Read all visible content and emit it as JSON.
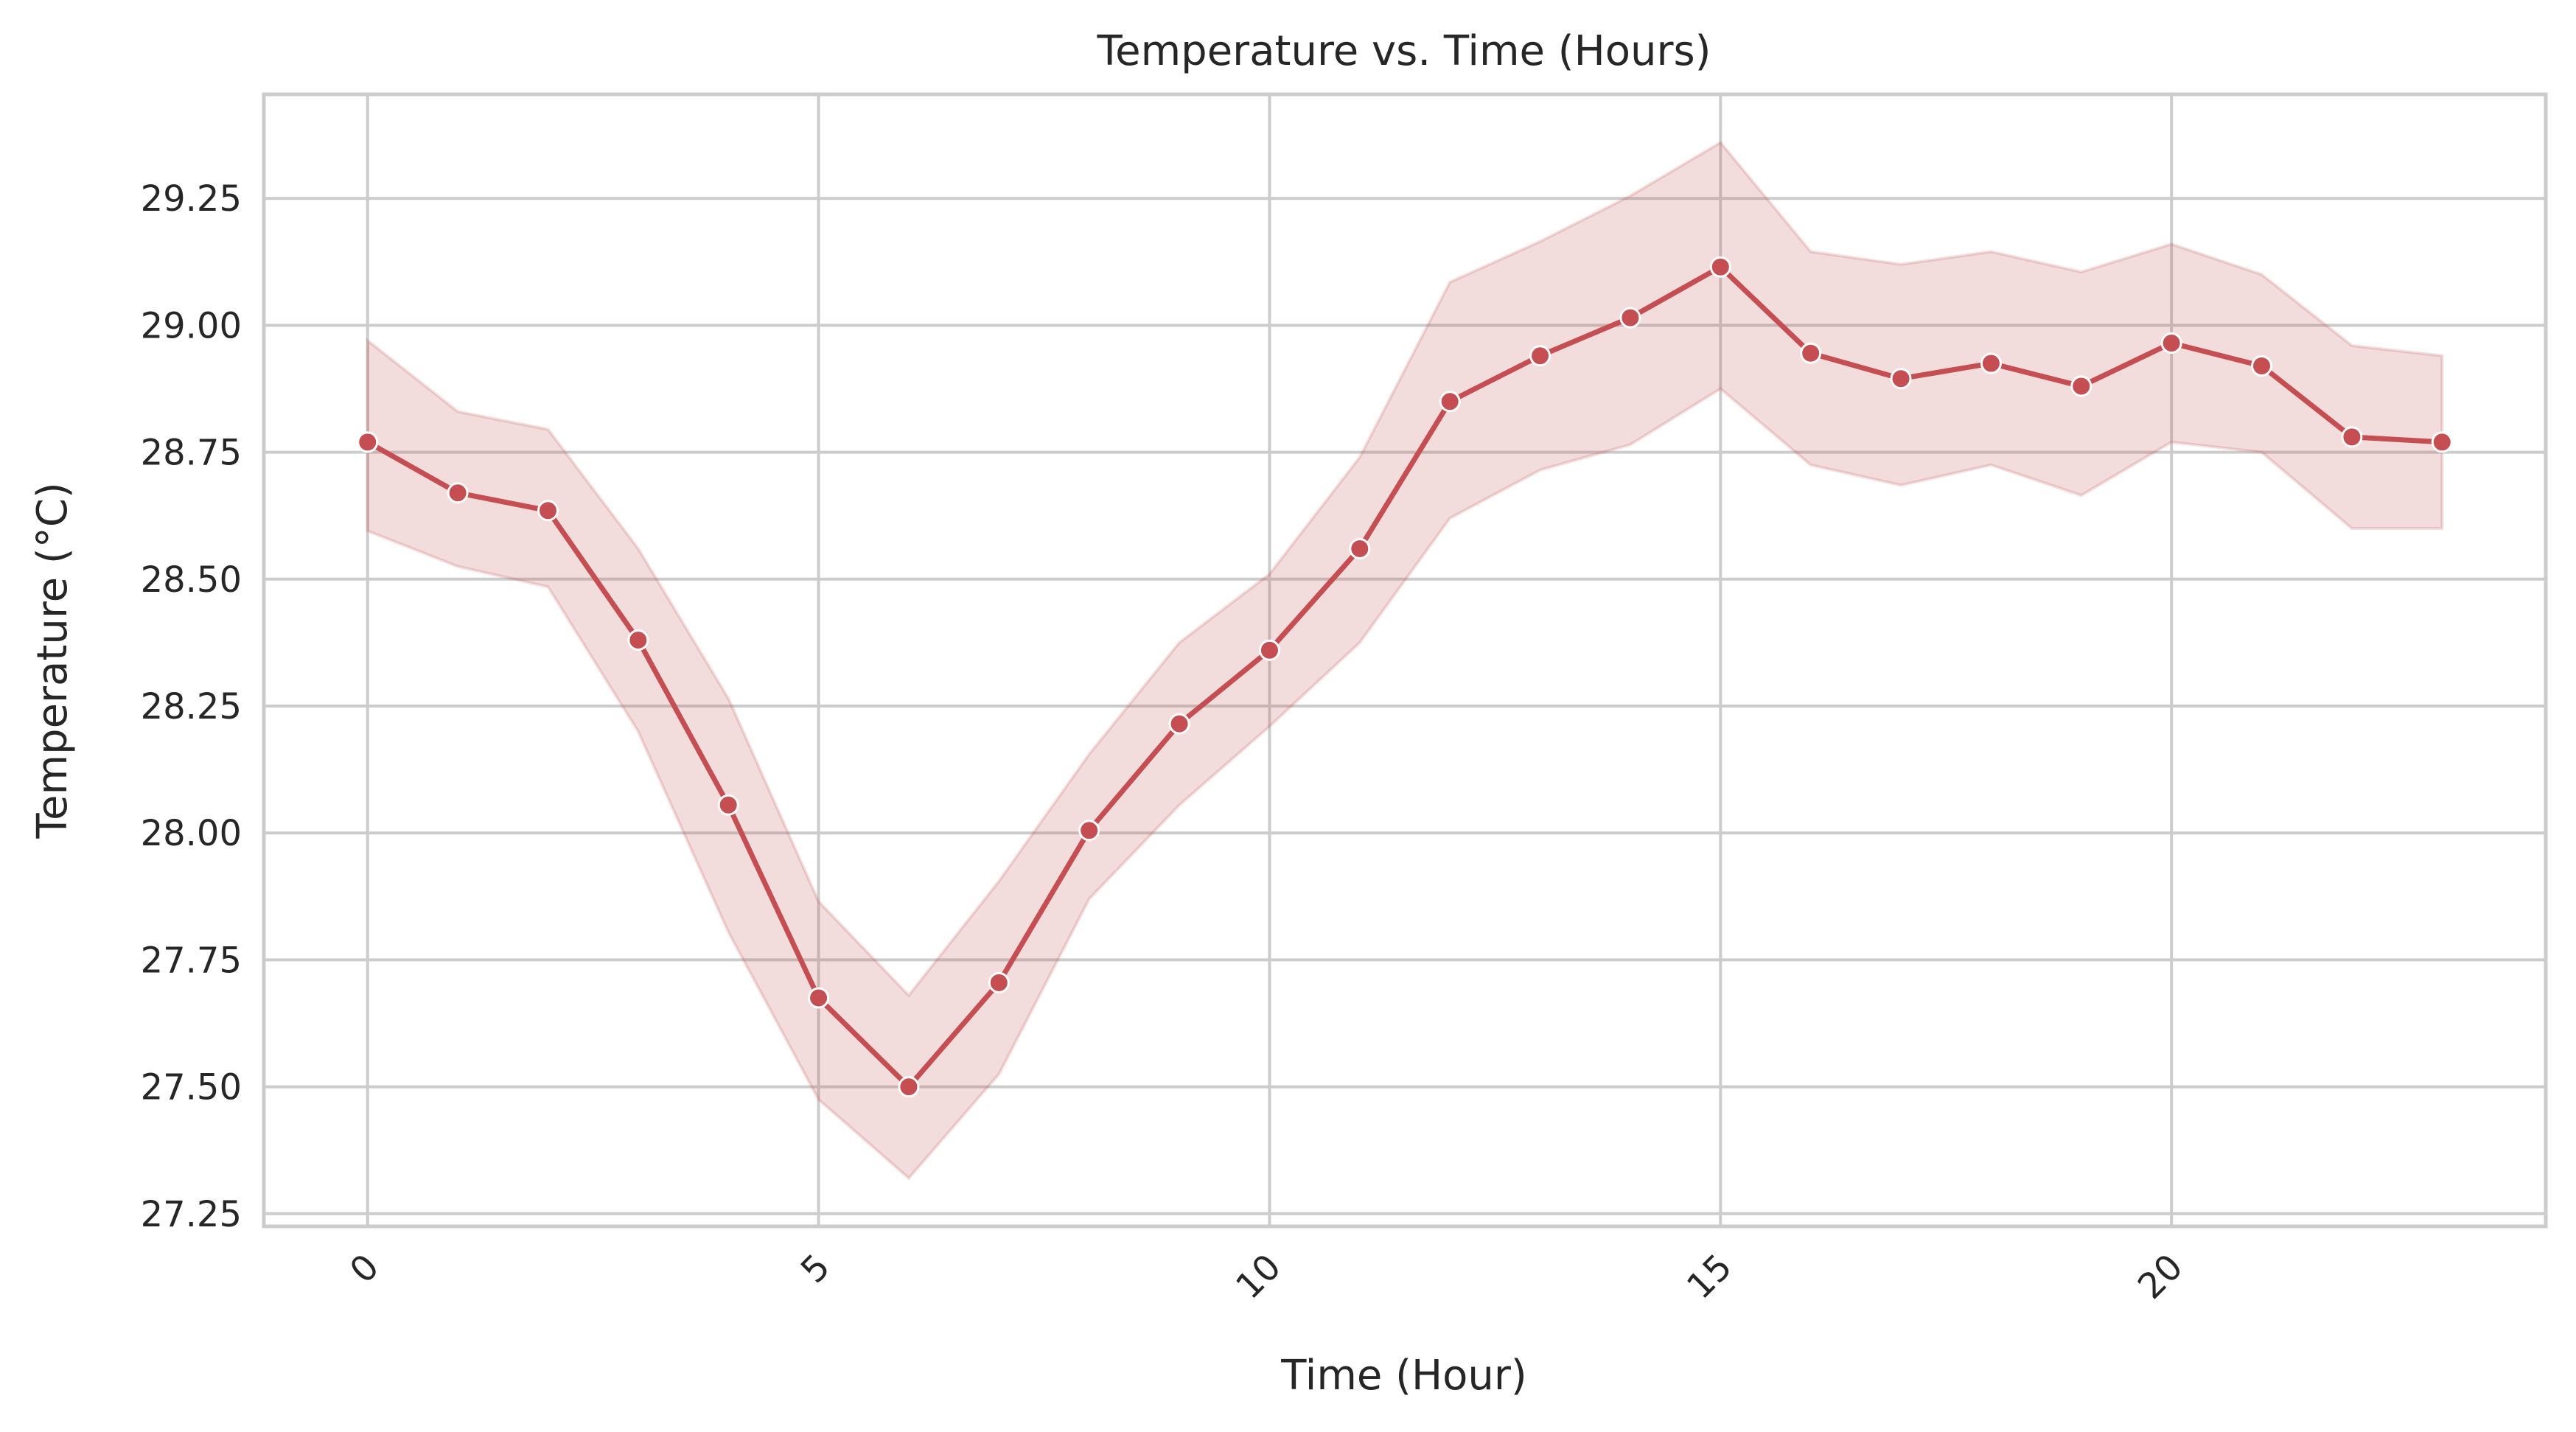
{
  "chart_data": {
    "type": "line",
    "title": "Temperature vs. Time (Hours)",
    "xlabel": "Time (Hour)",
    "ylabel": "Temperature (°C)",
    "x": [
      0,
      1,
      2,
      3,
      4,
      5,
      6,
      7,
      8,
      9,
      10,
      11,
      12,
      13,
      14,
      15,
      16,
      17,
      18,
      19,
      20,
      21,
      22,
      23
    ],
    "series": [
      {
        "values": [
          28.77,
          28.67,
          28.635,
          28.38,
          28.055,
          27.675,
          27.5,
          27.705,
          28.005,
          28.215,
          28.36,
          28.56,
          28.85,
          28.94,
          29.015,
          29.115,
          28.945,
          28.895,
          28.925,
          28.88,
          28.965,
          28.92,
          28.78,
          28.77
        ],
        "band_upper": [
          28.97,
          28.83,
          28.795,
          28.56,
          28.265,
          27.865,
          27.68,
          27.905,
          28.155,
          28.375,
          28.51,
          28.74,
          29.085,
          29.165,
          29.255,
          29.36,
          29.145,
          29.12,
          29.145,
          29.105,
          29.16,
          29.1,
          28.96,
          28.94
        ],
        "band_lower": [
          28.595,
          28.525,
          28.485,
          28.2,
          27.805,
          27.475,
          27.32,
          27.525,
          27.87,
          28.055,
          28.21,
          28.375,
          28.62,
          28.715,
          28.765,
          28.875,
          28.725,
          28.685,
          28.725,
          28.665,
          28.77,
          28.75,
          28.6,
          28.6
        ]
      }
    ],
    "xticks": [
      0,
      5,
      10,
      15,
      20
    ],
    "xtick_labels": [
      "0",
      "5",
      "10",
      "15",
      "20"
    ],
    "yticks": [
      27.25,
      27.5,
      27.75,
      28.0,
      28.25,
      28.5,
      28.75,
      29.0,
      29.25
    ],
    "ytick_labels": [
      "27.25",
      "27.50",
      "27.75",
      "28.00",
      "28.25",
      "28.50",
      "28.75",
      "29.00",
      "29.25"
    ],
    "xlim": [
      -1.15,
      24.15
    ],
    "ylim": [
      27.225,
      29.455
    ],
    "grid": true,
    "line_color": "#c44e52",
    "band_color": "#c44e52",
    "xtick_rotation": -45
  }
}
